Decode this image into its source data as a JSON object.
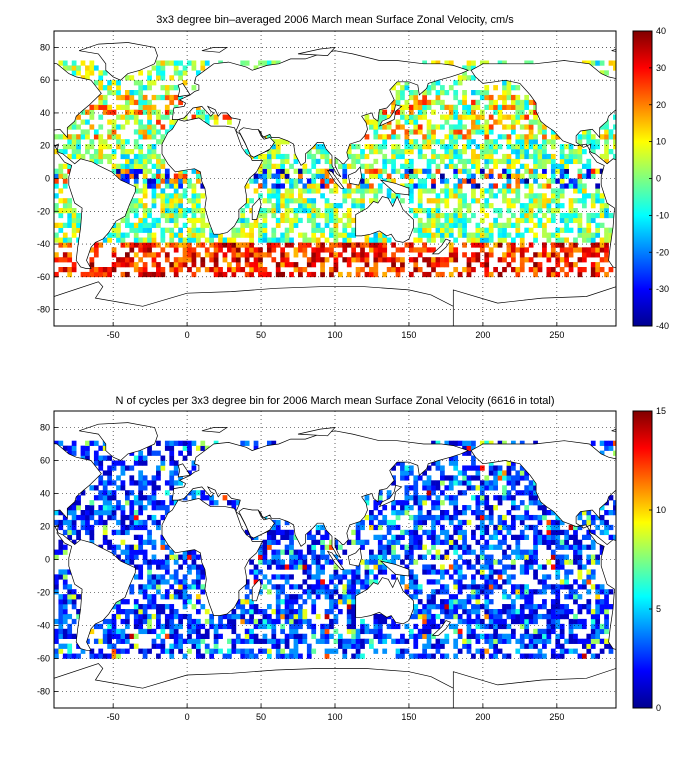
{
  "chart_data": [
    {
      "type": "heatmap",
      "title": "3x3 degree bin–averaged 2006 March mean Surface Zonal Velocity, cm/s",
      "xlim": [
        -90,
        290
      ],
      "ylim": [
        -90,
        90
      ],
      "x_ticks": [
        -50,
        0,
        50,
        100,
        150,
        200,
        250
      ],
      "y_ticks": [
        80,
        60,
        40,
        20,
        0,
        -20,
        -40,
        -60,
        -80
      ],
      "colorbar": {
        "min": -40,
        "max": 40,
        "ticks": [
          40,
          30,
          20,
          10,
          0,
          -10,
          -20,
          -30,
          -40
        ]
      },
      "grid": "dotted",
      "bin_size_deg": 3,
      "lat_band": [
        -60,
        70
      ]
    },
    {
      "type": "heatmap",
      "title": "N of cycles per 3x3 degree bin for 2006 March mean Surface Zonal Velocity (6616 in total)",
      "xlim": [
        -90,
        290
      ],
      "ylim": [
        -90,
        90
      ],
      "x_ticks": [
        -50,
        0,
        50,
        100,
        150,
        200,
        250
      ],
      "y_ticks": [
        80,
        60,
        40,
        20,
        0,
        -20,
        -40,
        -60,
        -80
      ],
      "colorbar": {
        "min": 0,
        "max": 15,
        "ticks": [
          15,
          10,
          5,
          0
        ]
      },
      "grid": "dotted",
      "bin_size_deg": 3,
      "lat_band": [
        -60,
        70
      ]
    }
  ]
}
